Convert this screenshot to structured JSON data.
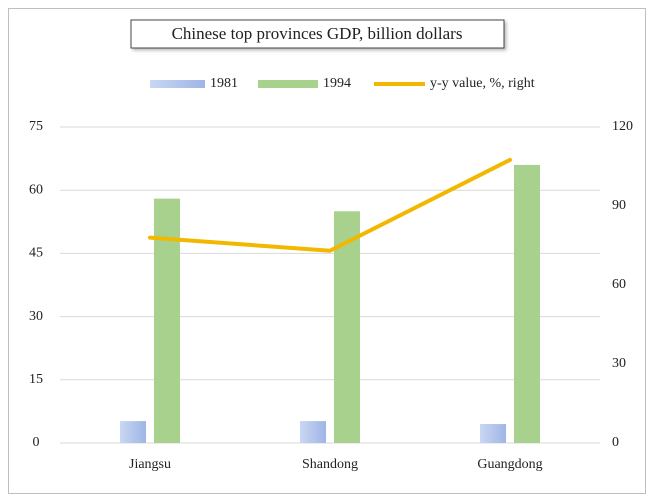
{
  "chart_data": {
    "type": "bar",
    "title": "Chinese top provinces GDP, billion dollars",
    "categories": [
      "Jiangsu",
      "Shandong",
      "Guangdong"
    ],
    "series": [
      {
        "name": "1981",
        "color": "#b4c6ea",
        "values": [
          5.2,
          5.2,
          4.5
        ]
      },
      {
        "name": "1994",
        "color": "#a9d18e",
        "values": [
          58,
          55,
          66
        ]
      },
      {
        "name": "y-y value, %, right",
        "type": "line",
        "axis": "y2",
        "color": "#f2b800",
        "values": [
          78,
          73,
          107.5
        ]
      }
    ],
    "ylim": [
      0,
      75
    ],
    "yticks": [
      0,
      15,
      30,
      45,
      60,
      75
    ],
    "y2lim": [
      0,
      120
    ],
    "y2ticks": [
      0,
      30,
      60,
      90,
      120
    ],
    "grid": true,
    "legend": "top"
  }
}
